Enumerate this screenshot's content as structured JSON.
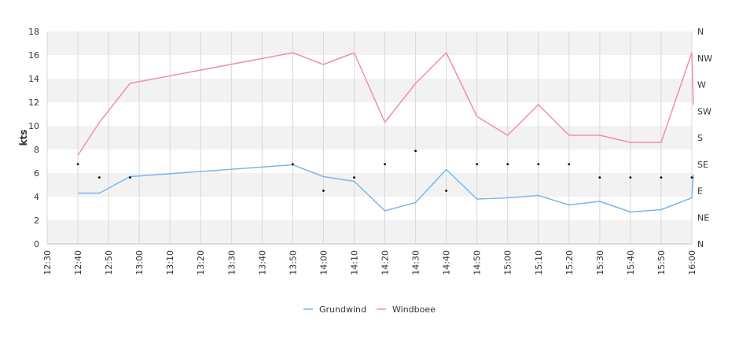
{
  "chart_data": {
    "type": "line",
    "ylabel": "kts",
    "ylim": [
      0,
      18
    ],
    "yticks": [
      0,
      2,
      4,
      6,
      8,
      10,
      12,
      14,
      16,
      18
    ],
    "xlim": [
      "12:30",
      "16:00"
    ],
    "xticks": [
      "12:30",
      "12:40",
      "12:50",
      "13:00",
      "13:10",
      "13:20",
      "13:30",
      "13:40",
      "13:50",
      "14:00",
      "14:10",
      "14:20",
      "14:30",
      "14:40",
      "14:50",
      "15:00",
      "15:10",
      "15:20",
      "15:30",
      "15:40",
      "15:50",
      "16:00"
    ],
    "right_axis": {
      "labels": [
        "N",
        "NE",
        "E",
        "SE",
        "S",
        "SW",
        "W",
        "NW",
        "N"
      ],
      "range_deg": [
        0,
        360
      ]
    },
    "grid": "vertical lines, alternating horizontal bands",
    "legend": "bottom-center",
    "colors": {
      "Grundwind": "#7cb5ec",
      "Windboee": "#f28cb5"
    },
    "series": [
      {
        "name": "Grundwind",
        "x": [
          "12:40",
          "12:47",
          "12:57",
          "13:50",
          "14:00",
          "14:10",
          "14:20",
          "14:30",
          "14:40",
          "14:50",
          "15:00",
          "15:10",
          "15:20",
          "15:30",
          "15:40",
          "15:50",
          "16:00",
          "16:00:30"
        ],
        "values": [
          4.3,
          4.3,
          5.7,
          6.7,
          5.7,
          5.3,
          2.8,
          3.5,
          6.3,
          3.8,
          3.9,
          4.1,
          3.3,
          3.6,
          2.7,
          2.9,
          3.9,
          5.9
        ]
      },
      {
        "name": "Windboee",
        "x": [
          "12:40",
          "12:47",
          "12:57",
          "13:50",
          "14:00",
          "14:10",
          "14:20",
          "14:30",
          "14:40",
          "14:50",
          "15:00",
          "15:10",
          "15:20",
          "15:30",
          "15:40",
          "15:50",
          "16:00",
          "16:00:30"
        ],
        "values": [
          7.5,
          10.3,
          13.6,
          16.2,
          15.2,
          16.2,
          10.3,
          13.6,
          16.2,
          10.8,
          9.2,
          11.8,
          9.2,
          9.2,
          8.6,
          8.6,
          16.2,
          11.8
        ]
      }
    ],
    "direction_points": {
      "name": "direction",
      "x": [
        "12:40",
        "12:47",
        "12:57",
        "13:50",
        "14:00",
        "14:10",
        "14:20",
        "14:30",
        "14:40",
        "14:50",
        "15:00",
        "15:10",
        "15:20",
        "15:30",
        "15:40",
        "15:50",
        "16:00"
      ],
      "degrees": [
        135,
        112.5,
        112.5,
        135,
        90,
        112.5,
        135,
        157.5,
        90,
        135,
        135,
        135,
        135,
        112.5,
        112.5,
        112.5,
        112.5
      ]
    }
  }
}
